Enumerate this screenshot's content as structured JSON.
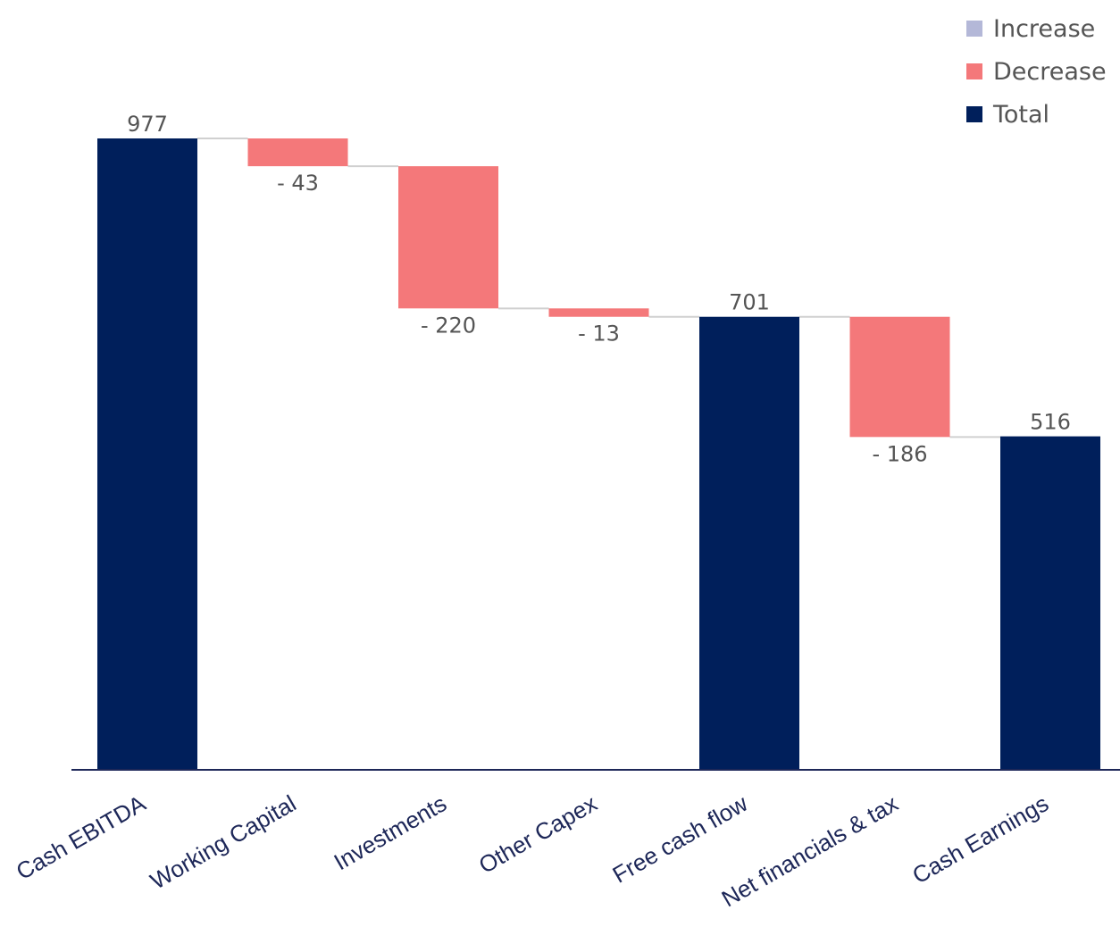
{
  "chart_data": {
    "type": "bar",
    "subtype": "waterfall",
    "categories": [
      "Cash EBITDA",
      "Working Capital",
      "Investments",
      "Other Capex",
      "Free cash flow",
      "Net financials & tax",
      "Cash Earnings"
    ],
    "values": [
      977,
      -43,
      -220,
      -13,
      701,
      -186,
      516
    ],
    "kinds": [
      "total",
      "decrease",
      "decrease",
      "decrease",
      "total",
      "decrease",
      "total"
    ],
    "value_labels": [
      "977",
      "- 43",
      "- 220",
      "- 13",
      "701",
      "- 186",
      "516"
    ],
    "ylim": [
      0,
      977
    ],
    "grid": false,
    "legend_position": "top-right",
    "legend": [
      {
        "name": "Increase",
        "color": "#b4b8d8"
      },
      {
        "name": "Decrease",
        "color": "#f4787a"
      },
      {
        "name": "Total",
        "color": "#001f5b"
      }
    ],
    "colors": {
      "increase": "#b4b8d8",
      "decrease": "#f4787a",
      "total": "#001f5b",
      "axis": "#1d2758",
      "connector": "#d0d0d0"
    }
  }
}
